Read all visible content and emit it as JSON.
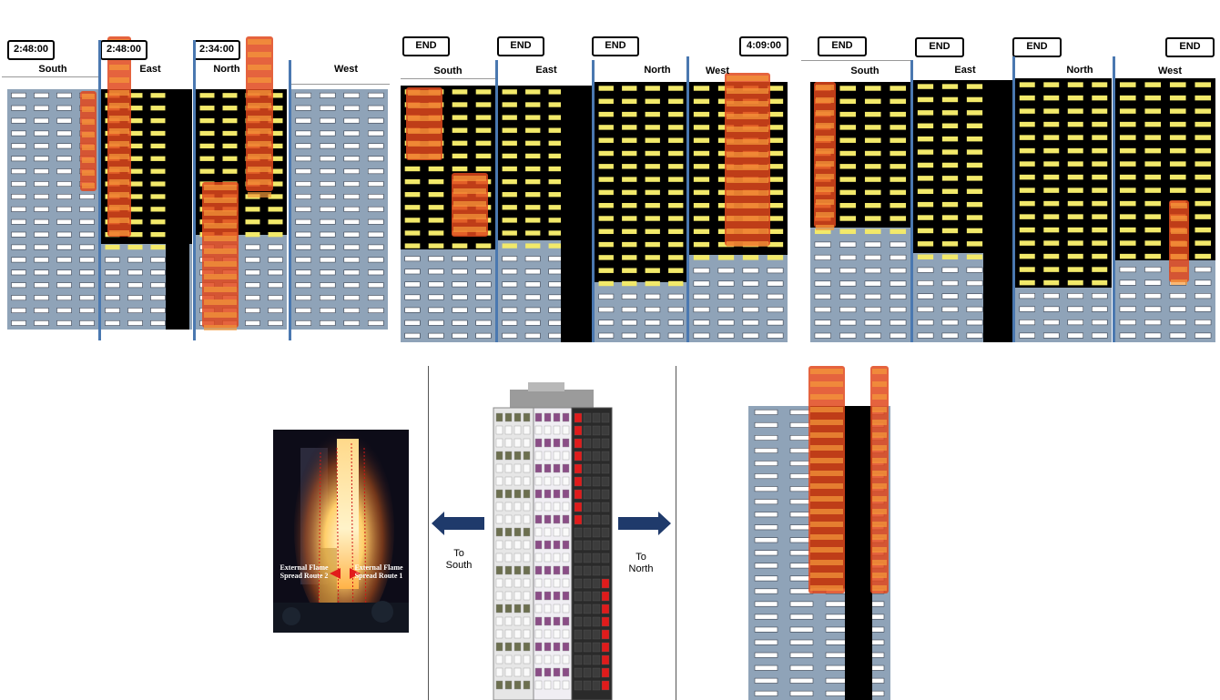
{
  "panels": [
    {
      "name": "time-2-48",
      "faces": [
        "South",
        "East",
        "North",
        "West"
      ],
      "time_labels": [
        "2:48:00",
        "2:48:00",
        "2:34:00"
      ]
    },
    {
      "name": "end-state-1",
      "faces": [
        "South",
        "East",
        "North",
        "West"
      ],
      "time_labels": [
        "END",
        "END",
        "END",
        "4:09:00"
      ]
    },
    {
      "name": "end-state-2",
      "faces": [
        "South",
        "East",
        "North",
        "West"
      ],
      "time_labels": [
        "END",
        "END",
        "END",
        "END"
      ]
    }
  ],
  "photo": {
    "route2": "External Flame Spread Route 2",
    "route1": "External Flame Spread Route 1"
  },
  "directions": {
    "south_line1": "To",
    "south_line2": "South",
    "north_line1": "To",
    "north_line2": "North"
  },
  "colors": {
    "cladding": "#8fa3b8",
    "burnt": "#000000",
    "window_lit": "#f2e96a",
    "window": "#ffffff",
    "flame": "#e0481c",
    "divider": "#4a78b0",
    "arrow": "#1f3a6b"
  }
}
